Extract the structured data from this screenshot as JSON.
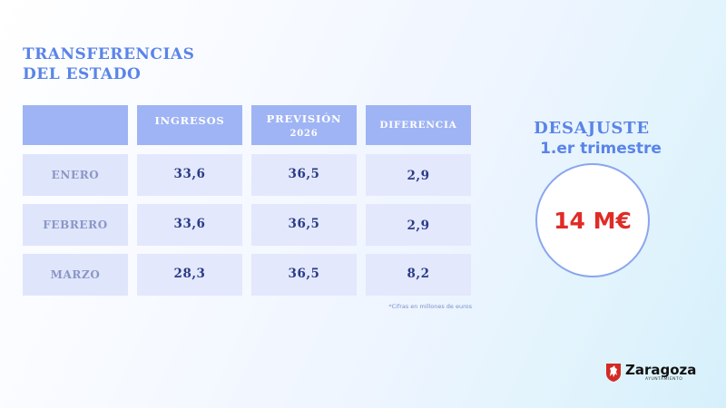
{
  "title": {
    "line1": "TRANSFERENCIAS",
    "line2": "DEL ESTADO"
  },
  "table": {
    "headers": [
      {
        "line1": "INGRESOS",
        "line2": ""
      },
      {
        "line1": "PREVISIÓN",
        "line2": "2026"
      },
      {
        "line1": "DIFERENCIA",
        "line2": ""
      }
    ],
    "rows": [
      {
        "label": "ENERO",
        "ingresos": "33,6",
        "prevision": "36,5",
        "diferencia": "2,9"
      },
      {
        "label": "FEBRERO",
        "ingresos": "33,6",
        "prevision": "36,5",
        "diferencia": "2,9"
      },
      {
        "label": "MARZO",
        "ingresos": "28,3",
        "prevision": "36,5",
        "diferencia": "8,2"
      }
    ],
    "note": "*Cifras en millones de euros"
  },
  "desajuste": {
    "line1": "DESAJUSTE",
    "line2": "1.er trimestre",
    "value": "14 M€"
  },
  "logo": {
    "name": "Zaragoza",
    "sub": "AYUNTAMIENTO"
  },
  "colors": {
    "accent": "#5a84e8",
    "header_bg": "#9fb4f4",
    "cell_bg": "#e3e8fc",
    "value_text": "#2a3c86",
    "highlight": "#e12b26"
  }
}
